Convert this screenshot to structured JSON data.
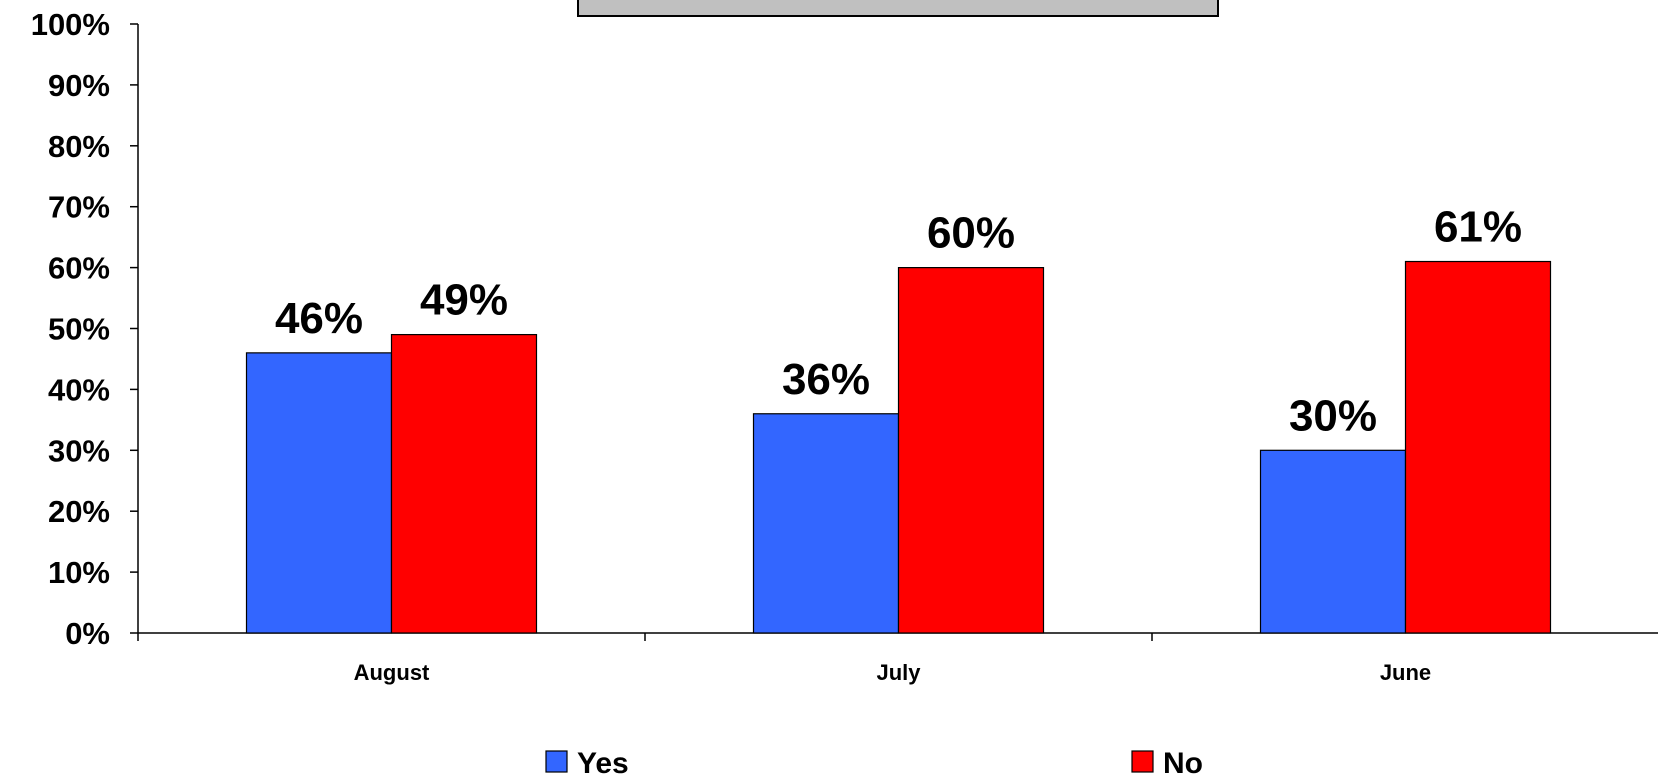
{
  "chart_data": {
    "type": "bar",
    "title": "",
    "xlabel": "",
    "ylabel": "",
    "categories": [
      "August",
      "July",
      "June"
    ],
    "series": [
      {
        "name": "Yes",
        "values": [
          46,
          36,
          30
        ],
        "labels": [
          "46%",
          "36%",
          "30%"
        ],
        "color": "#3366FF"
      },
      {
        "name": "No",
        "values": [
          49,
          60,
          61
        ],
        "labels": [
          "49%",
          "60%",
          "61%"
        ],
        "color": "#FF0000"
      }
    ],
    "ylim": [
      0,
      100
    ],
    "y_ticks": [
      0,
      10,
      20,
      30,
      40,
      50,
      60,
      70,
      80,
      90,
      100
    ],
    "y_tick_labels": [
      "0%",
      "10%",
      "20%",
      "30%",
      "40%",
      "50%",
      "60%",
      "70%",
      "80%",
      "90%",
      "100%"
    ],
    "grid": false,
    "legend_position": "bottom",
    "title_box_color": "#C0C0C0"
  }
}
